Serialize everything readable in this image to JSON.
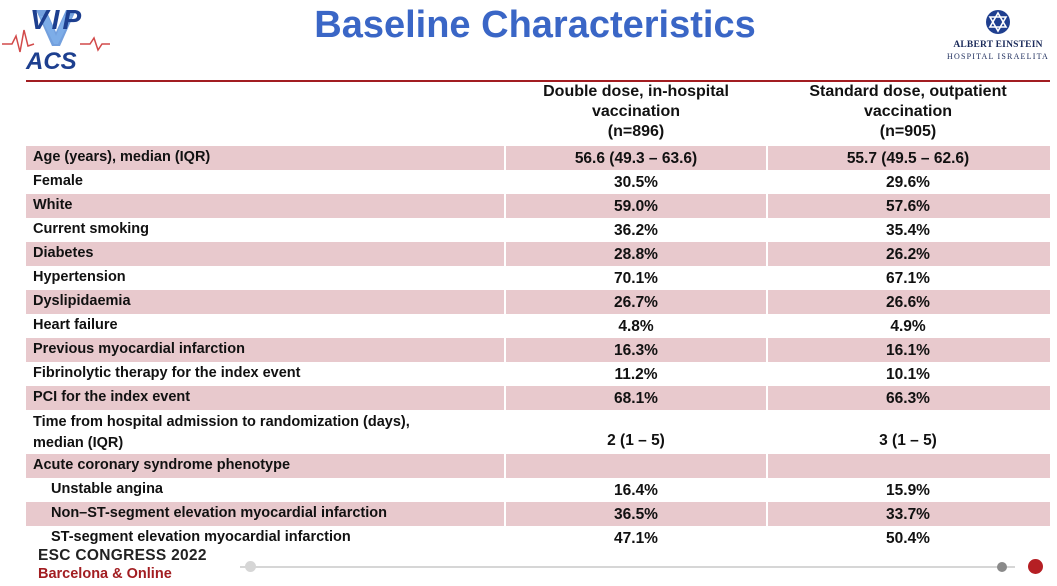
{
  "logo_left": {
    "text_top": "VIP",
    "text_bottom": "ACS"
  },
  "logo_right": {
    "line1": "ALBERT EINSTEIN",
    "line2": "HOSPITAL ISRAELITA"
  },
  "title": "Baseline Characteristics",
  "columns": [
    {
      "lines": [
        "Double dose, in-hospital",
        "vaccination",
        "(n=896)"
      ]
    },
    {
      "lines": [
        "Standard dose, outpatient",
        "vaccination",
        "(n=905)"
      ]
    }
  ],
  "rows": [
    {
      "label": "Age (years), median (IQR)",
      "v1": "56.6 (49.3 – 63.6)",
      "v2": "55.7 (49.5 – 62.6)"
    },
    {
      "label": "Female",
      "v1": "30.5%",
      "v2": "29.6%"
    },
    {
      "label": "White",
      "v1": "59.0%",
      "v2": "57.6%"
    },
    {
      "label": "Current smoking",
      "v1": "36.2%",
      "v2": "35.4%"
    },
    {
      "label": "Diabetes",
      "v1": "28.8%",
      "v2": "26.2%"
    },
    {
      "label": "Hypertension",
      "v1": "70.1%",
      "v2": "67.1%"
    },
    {
      "label": "Dyslipidaemia",
      "v1": "26.7%",
      "v2": "26.6%"
    },
    {
      "label": "Heart failure",
      "v1": "4.8%",
      "v2": "4.9%"
    },
    {
      "label": "Previous myocardial infarction",
      "v1": "16.3%",
      "v2": "16.1%"
    },
    {
      "label": "Fibrinolytic therapy for the index event",
      "v1": "11.2%",
      "v2": "10.1%"
    },
    {
      "label": "PCI for the index event",
      "v1": "68.1%",
      "v2": "66.3%"
    },
    {
      "label_lines": [
        "Time from hospital admission to randomization (days),",
        "median (IQR)"
      ],
      "v1": "2 (1 – 5)",
      "v2": "3 (1 – 5)"
    },
    {
      "label": "Acute coronary syndrome phenotype",
      "v1": "",
      "v2": ""
    },
    {
      "label": "Unstable angina",
      "v1": "16.4%",
      "v2": "15.9%"
    },
    {
      "label": "Non–ST-segment elevation myocardial infarction",
      "v1": "36.5%",
      "v2": "33.7%"
    },
    {
      "label": "ST-segment elevation myocardial infarction",
      "v1": "47.1%",
      "v2": "50.4%"
    }
  ],
  "footer": {
    "line1": "ESC CONGRESS 2022",
    "line2": "Barcelona & Online"
  },
  "colors": {
    "title": "#3a66c6",
    "rule": "#a21d21",
    "row_shade": "#e8c9cd",
    "footer_accent": "#a21d21"
  }
}
